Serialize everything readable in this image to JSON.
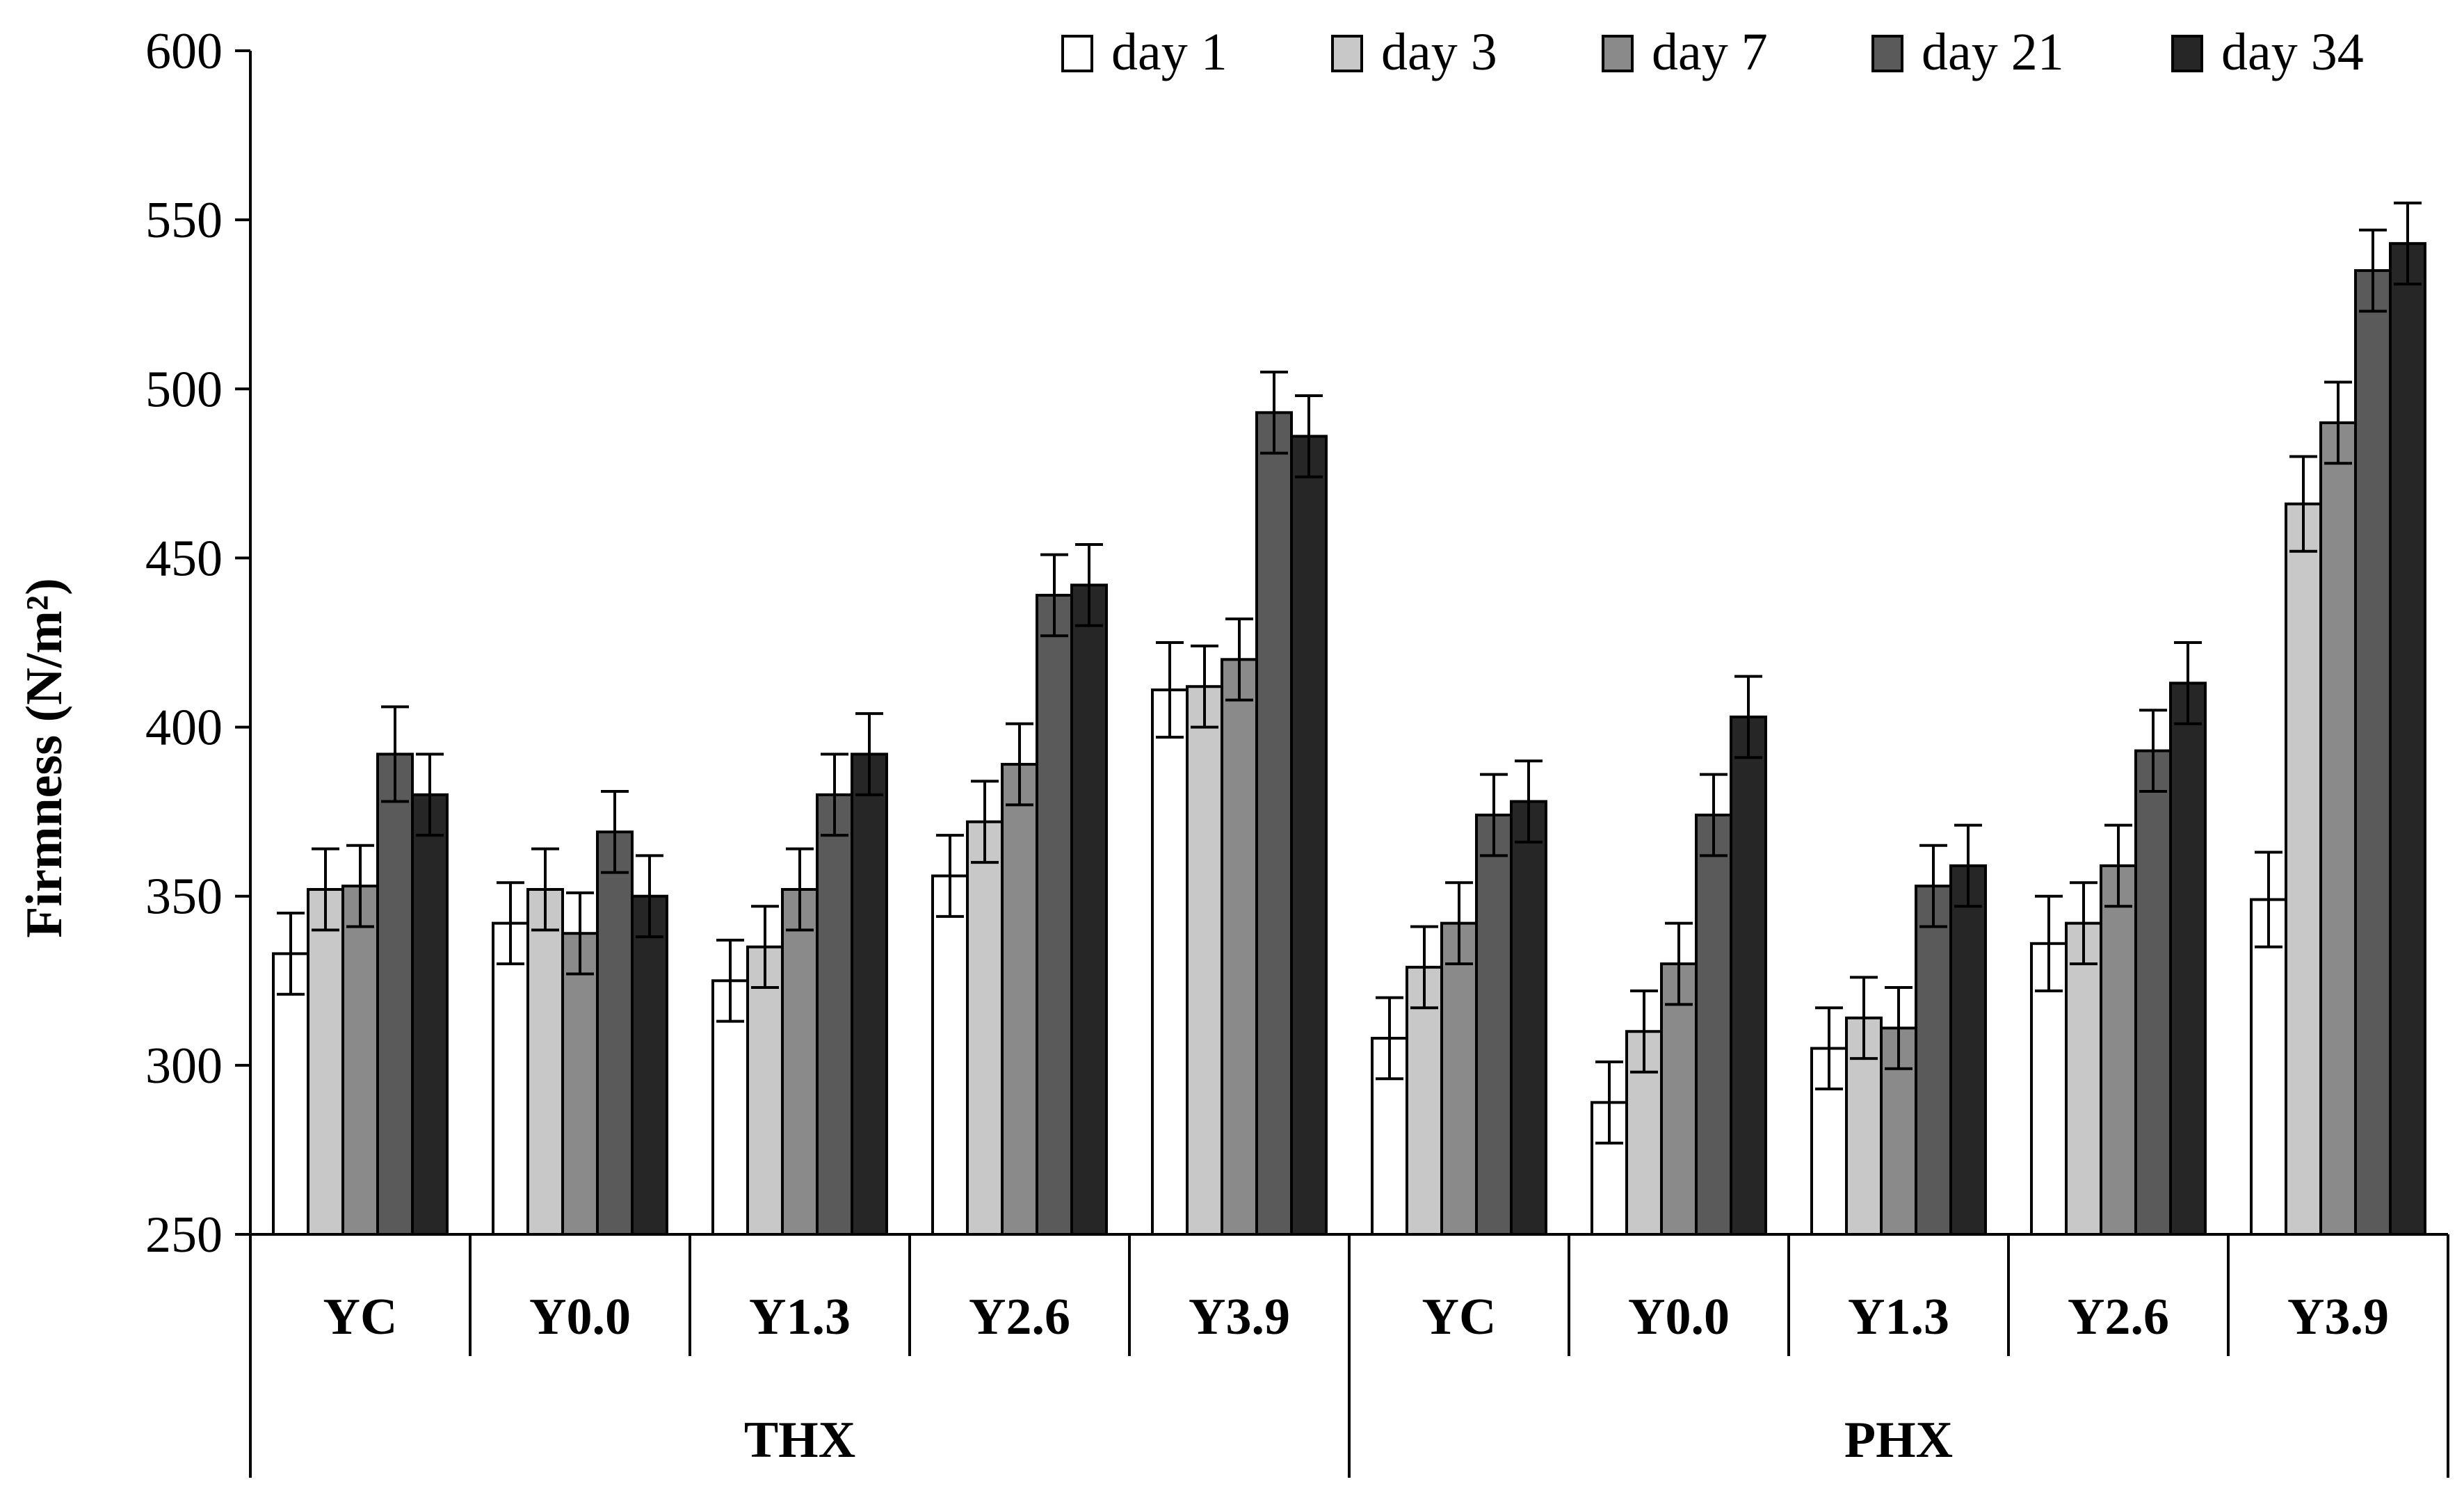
{
  "chart_data": {
    "type": "bar",
    "ylabel": "Firmness (N/m²)",
    "xlabel": "",
    "ylim": [
      250,
      600
    ],
    "yticks": [
      250,
      300,
      350,
      400,
      450,
      500,
      550,
      600
    ],
    "grid": false,
    "legend_position": "top-right",
    "groups": [
      "THX",
      "PHX"
    ],
    "subcategories": [
      "YC",
      "Y0.0",
      "Y1.3",
      "Y2.6",
      "Y3.9"
    ],
    "categories": [
      "YC",
      "Y0.0",
      "Y1.3",
      "Y2.6",
      "Y3.9",
      "YC",
      "Y0.0",
      "Y1.3",
      "Y2.6",
      "Y3.9"
    ],
    "series": [
      {
        "name": "day 1",
        "color": "#ffffff",
        "values": [
          333,
          342,
          325,
          356,
          411,
          308,
          289,
          305,
          336,
          349
        ],
        "errors": [
          12,
          12,
          12,
          12,
          14,
          12,
          12,
          12,
          14,
          14
        ]
      },
      {
        "name": "day 3",
        "color": "#c8c8c8",
        "values": [
          352,
          352,
          335,
          372,
          412,
          329,
          310,
          314,
          342,
          466
        ],
        "errors": [
          12,
          12,
          12,
          12,
          12,
          12,
          12,
          12,
          12,
          14
        ]
      },
      {
        "name": "day 7",
        "color": "#8a8a8a",
        "values": [
          353,
          339,
          352,
          389,
          420,
          342,
          330,
          311,
          359,
          490
        ],
        "errors": [
          12,
          12,
          12,
          12,
          12,
          12,
          12,
          12,
          12,
          12
        ]
      },
      {
        "name": "day 21",
        "color": "#5a5a5a",
        "values": [
          392,
          369,
          380,
          439,
          493,
          374,
          374,
          353,
          393,
          535
        ],
        "errors": [
          14,
          12,
          12,
          12,
          12,
          12,
          12,
          12,
          12,
          12
        ]
      },
      {
        "name": "day 34",
        "color": "#262626",
        "values": [
          380,
          350,
          392,
          442,
          486,
          378,
          403,
          359,
          413,
          543
        ],
        "errors": [
          12,
          12,
          12,
          12,
          12,
          12,
          12,
          12,
          12,
          12
        ]
      }
    ]
  }
}
